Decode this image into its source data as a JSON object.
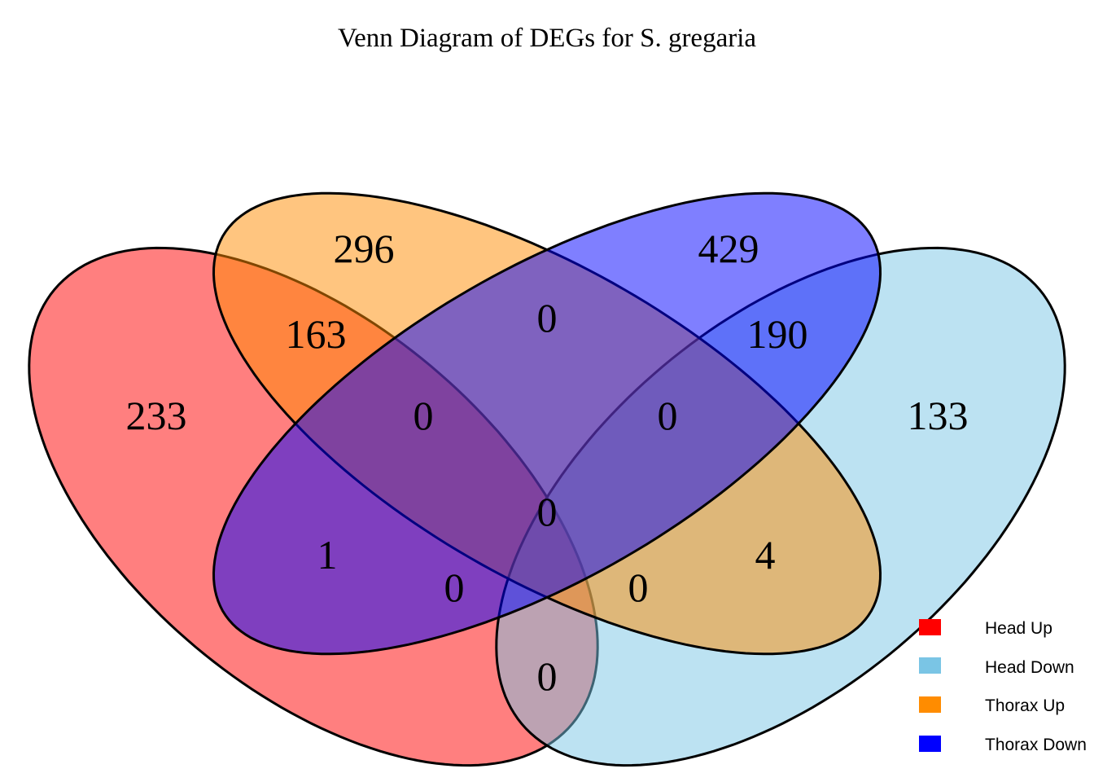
{
  "chart_data": {
    "type": "venn",
    "title": "Venn Diagram of DEGs for S. gregaria",
    "sets": [
      {
        "name": "Head Up",
        "color": "#FF0000"
      },
      {
        "name": "Head Down",
        "color": "#7AC5E5"
      },
      {
        "name": "Thorax Up",
        "color": "#FF8C00"
      },
      {
        "name": "Thorax Down",
        "color": "#0000FF"
      }
    ],
    "fill_opacity": 0.5,
    "legend_position": "bottom-right",
    "regions": {
      "head_up_only": 233,
      "head_down_only": 133,
      "thorax_up_only": 296,
      "thorax_down_only": 429,
      "head_up_thorax_up": 163,
      "head_down_thorax_down": 190,
      "thorax_up_thorax_down": 0,
      "head_up_thorax_up_thorax_down": 0,
      "head_down_thorax_up_thorax_down": 0,
      "all_four": 0,
      "head_up_thorax_down": 1,
      "head_down_thorax_up": 4,
      "head_up_head_down_thorax_down": 0,
      "head_up_head_down_thorax_up": 0,
      "head_up_head_down": 0
    }
  }
}
